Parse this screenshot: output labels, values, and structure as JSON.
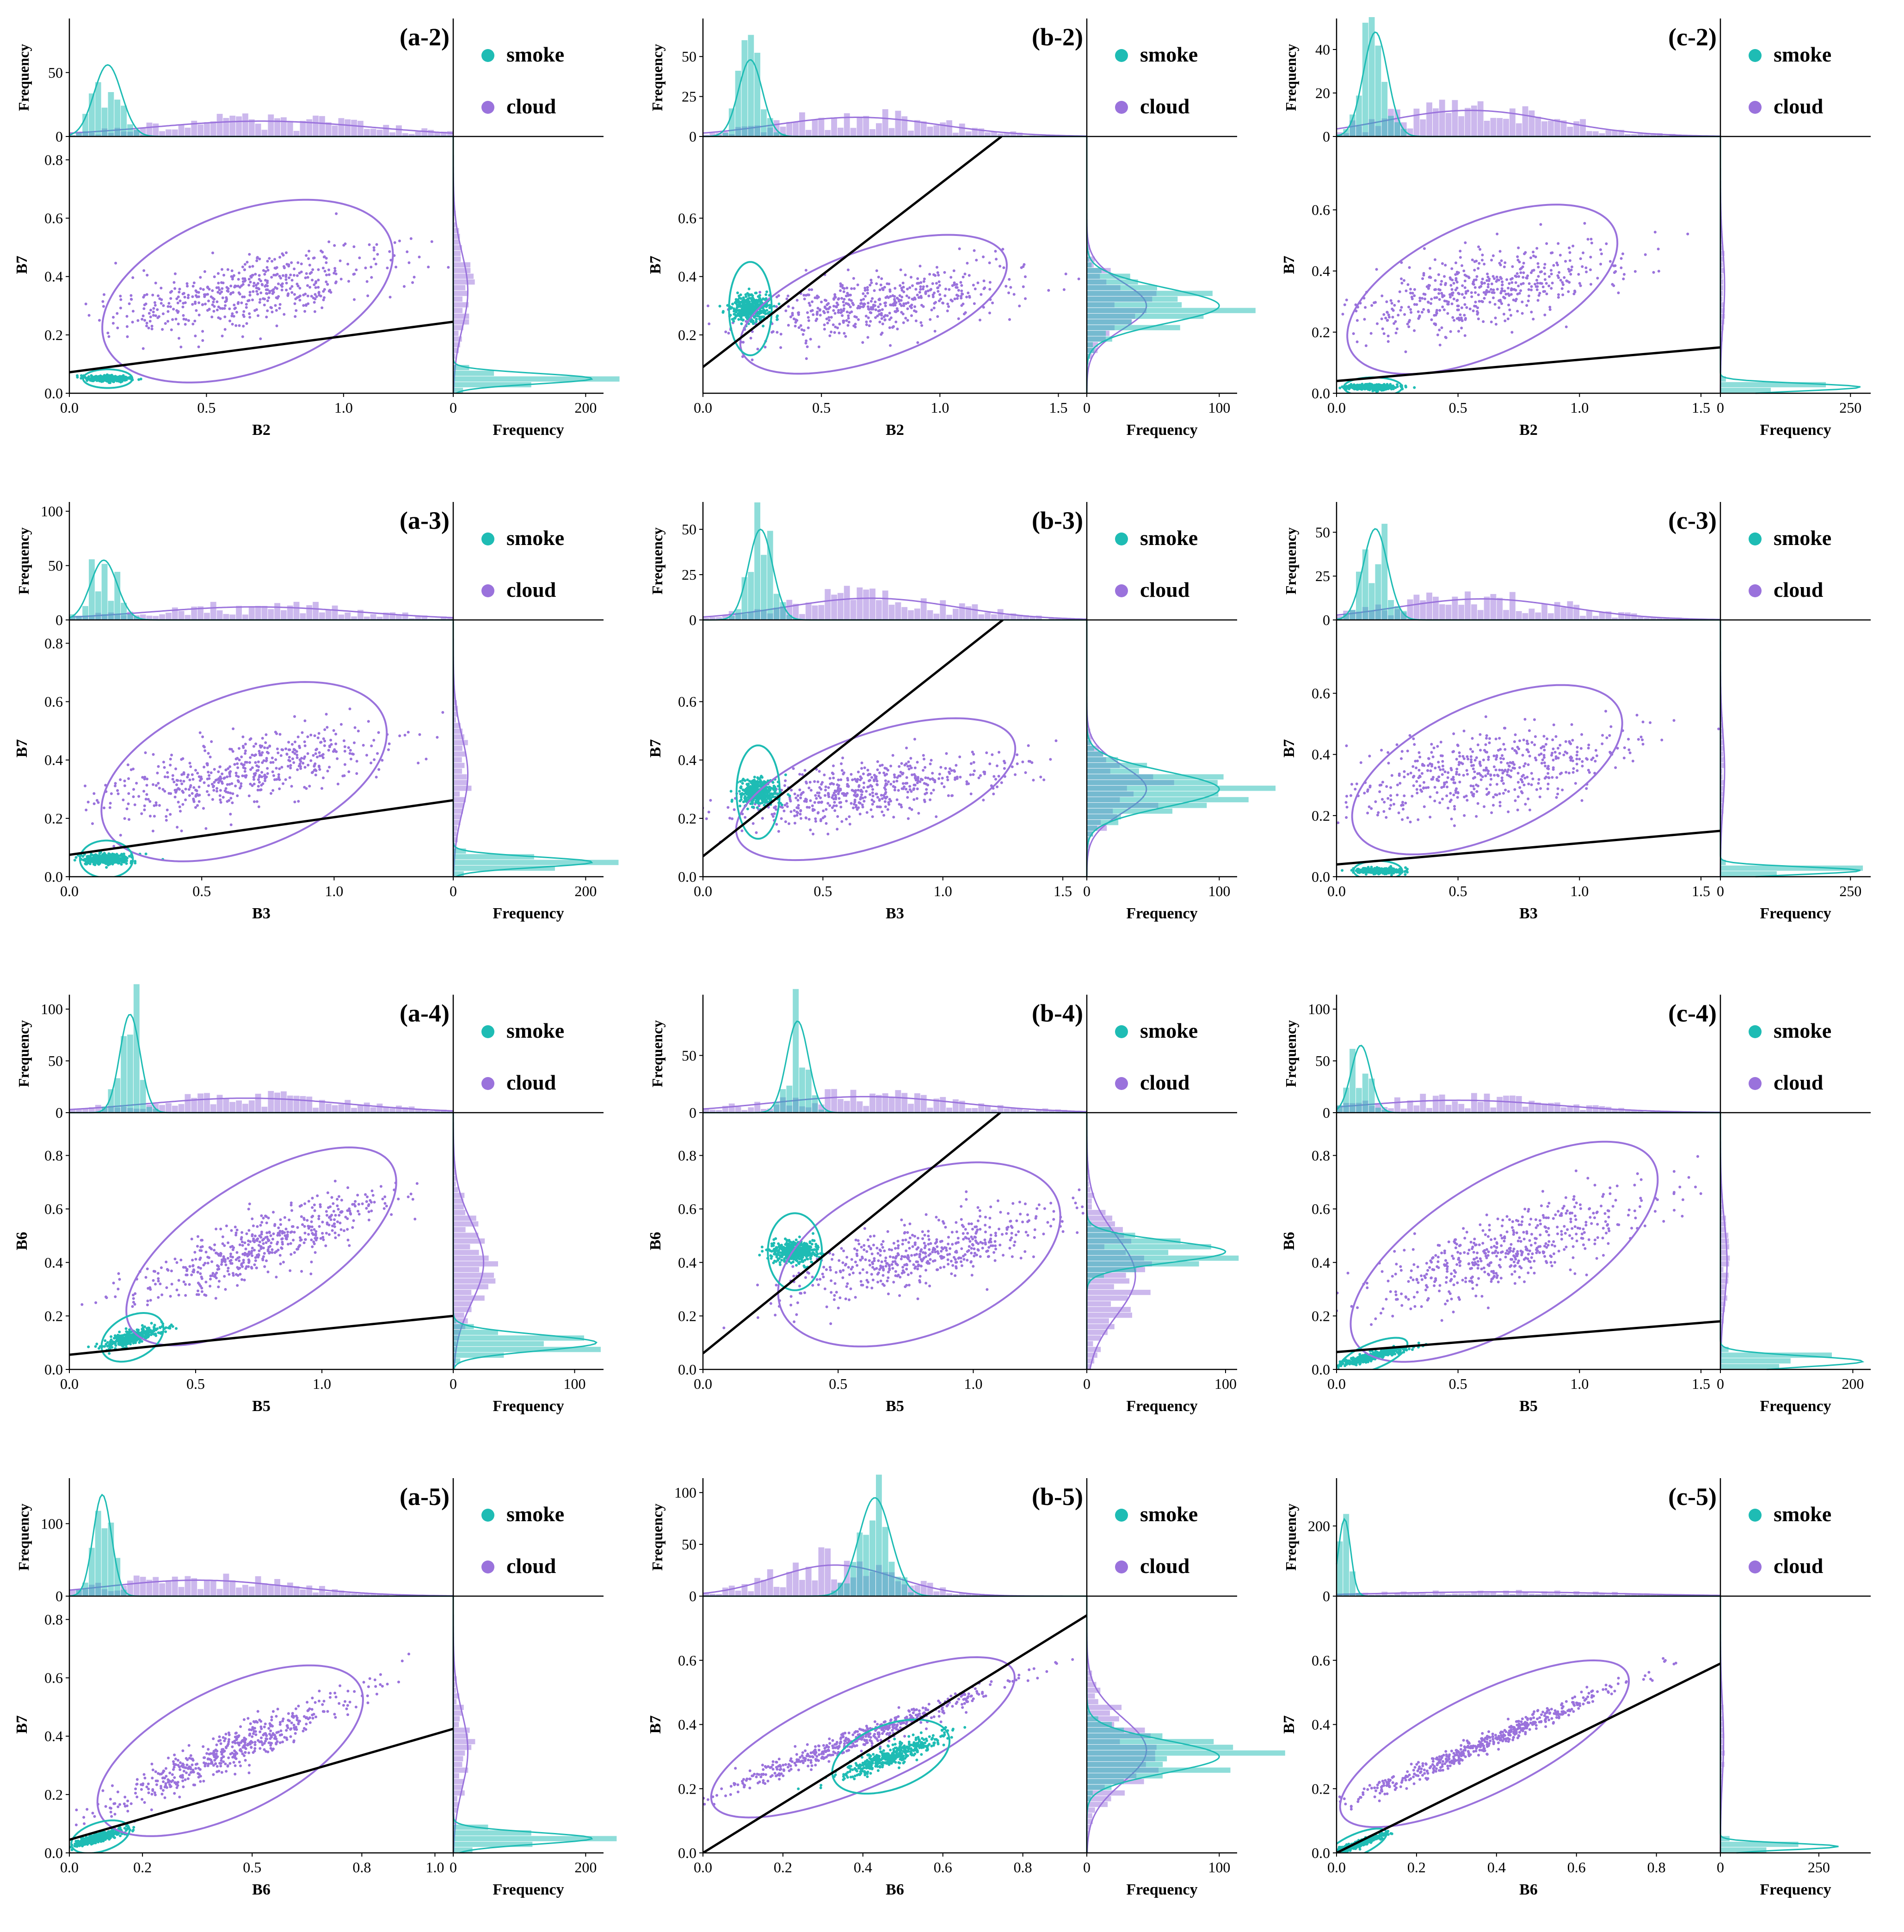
{
  "figure": {
    "legend": {
      "smoke": "smoke",
      "cloud": "cloud"
    },
    "colors": {
      "smoke": "#1ebcb4",
      "cloud": "#9a72dc",
      "line": "#000000",
      "axis": "#000000"
    },
    "hist_label": "Frequency"
  },
  "chart_data": [
    {
      "id": "a-2",
      "panel": "(a-2)",
      "type": "scatter",
      "xlabel": "B2",
      "ylabel": "B7",
      "xlim": [
        0,
        1.4
      ],
      "xticks": [
        0,
        0.5,
        1.0
      ],
      "ylim": [
        0,
        0.88
      ],
      "yticks": [
        0,
        0.2,
        0.4,
        0.6,
        0.8
      ],
      "topmax": 85,
      "topticks": [
        0,
        50
      ],
      "rightmax": 220,
      "rightticks": [
        0,
        200
      ],
      "smoke": {
        "cx": 0.14,
        "cy": 0.05,
        "rx": 0.09,
        "ry": 0.02,
        "rot": 0
      },
      "cloud": {
        "cx": 0.65,
        "cy": 0.35,
        "rx": 0.55,
        "ry": 0.2,
        "rot": 18,
        "yfrac": 0.55
      },
      "line": [
        [
          0,
          0.072
        ],
        [
          1.4,
          0.245
        ]
      ],
      "smoke_hist": {
        "center": 0.14,
        "sd": 0.05,
        "peak": 56
      },
      "cloud_hist": {
        "center": 0.7,
        "sd": 0.4,
        "peak": 12
      },
      "smoke_rhist": {
        "center": 0.05,
        "sd": 0.018,
        "peak": 210
      },
      "cloud_rhist": {
        "center": 0.35,
        "sd": 0.13,
        "peak": 22
      }
    },
    {
      "id": "b-2",
      "panel": "(b-2)",
      "type": "scatter",
      "xlabel": "B2",
      "ylabel": "B7",
      "xlim": [
        0,
        1.62
      ],
      "xticks": [
        0,
        0.5,
        1.0,
        1.5
      ],
      "ylim": [
        0,
        0.88
      ],
      "yticks": [
        0.2,
        0.4,
        0.6
      ],
      "topmax": 68,
      "topticks": [
        0,
        25,
        50
      ],
      "rightmax": 110,
      "rightticks": [
        0,
        100
      ],
      "smoke": {
        "cx": 0.2,
        "cy": 0.29,
        "rx": 0.09,
        "ry": 0.1,
        "rot": 0
      },
      "cloud": {
        "cx": 0.72,
        "cy": 0.305,
        "rx": 0.58,
        "ry": 0.16,
        "rot": 15,
        "yfrac": 0.6
      },
      "line": [
        [
          0,
          0.09
        ],
        [
          1.26,
          0.88
        ]
      ],
      "smoke_hist": {
        "center": 0.2,
        "sd": 0.05,
        "peak": 48
      },
      "cloud_hist": {
        "center": 0.65,
        "sd": 0.35,
        "peak": 12
      },
      "smoke_rhist": {
        "center": 0.3,
        "sd": 0.06,
        "peak": 100
      },
      "cloud_rhist": {
        "center": 0.3,
        "sd": 0.08,
        "peak": 45
      }
    },
    {
      "id": "c-2",
      "panel": "(c-2)",
      "type": "scatter",
      "xlabel": "B2",
      "ylabel": "B7",
      "xlim": [
        0,
        1.58
      ],
      "xticks": [
        0,
        0.5,
        1.0,
        1.5
      ],
      "ylim": [
        0,
        0.84
      ],
      "yticks": [
        0,
        0.2,
        0.4,
        0.6
      ],
      "topmax": 50,
      "topticks": [
        0,
        20,
        40
      ],
      "rightmax": 280,
      "rightticks": [
        0,
        250
      ],
      "smoke": {
        "cx": 0.15,
        "cy": 0.02,
        "rx": 0.12,
        "ry": 0.02,
        "rot": 0
      },
      "cloud": {
        "cx": 0.6,
        "cy": 0.34,
        "rx": 0.58,
        "ry": 0.19,
        "rot": 18,
        "yfrac": 0.6
      },
      "line": [
        [
          0,
          0.04
        ],
        [
          1.58,
          0.15
        ]
      ],
      "smoke_hist": {
        "center": 0.16,
        "sd": 0.05,
        "peak": 48
      },
      "cloud_hist": {
        "center": 0.55,
        "sd": 0.35,
        "peak": 12
      },
      "smoke_rhist": {
        "center": 0.02,
        "sd": 0.012,
        "peak": 270
      },
      "cloud_rhist": {
        "center": 0.35,
        "sd": 0.12,
        "peak": 8
      }
    },
    {
      "id": "a-3",
      "panel": "(a-3)",
      "type": "scatter",
      "xlabel": "B3",
      "ylabel": "B7",
      "xlim": [
        0,
        1.45
      ],
      "xticks": [
        0,
        0.5,
        1.0
      ],
      "ylim": [
        0,
        0.88
      ],
      "yticks": [
        0,
        0.2,
        0.4,
        0.6,
        0.8
      ],
      "topmax": 100,
      "topticks": [
        0,
        50,
        100
      ],
      "rightmax": 220,
      "rightticks": [
        0,
        200
      ],
      "smoke": {
        "cx": 0.14,
        "cy": 0.06,
        "rx": 0.1,
        "ry": 0.04,
        "rot": 0
      },
      "cloud": {
        "cx": 0.66,
        "cy": 0.36,
        "rx": 0.56,
        "ry": 0.2,
        "rot": 18,
        "yfrac": 0.55
      },
      "line": [
        [
          0,
          0.075
        ],
        [
          1.45,
          0.262
        ]
      ],
      "smoke_hist": {
        "center": 0.13,
        "sd": 0.05,
        "peak": 55
      },
      "cloud_hist": {
        "center": 0.7,
        "sd": 0.4,
        "peak": 12
      },
      "smoke_rhist": {
        "center": 0.05,
        "sd": 0.018,
        "peak": 210
      },
      "cloud_rhist": {
        "center": 0.35,
        "sd": 0.13,
        "peak": 22
      }
    },
    {
      "id": "b-3",
      "panel": "(b-3)",
      "type": "scatter",
      "xlabel": "B3",
      "ylabel": "B7",
      "xlim": [
        0,
        1.6
      ],
      "xticks": [
        0,
        0.5,
        1.0,
        1.5
      ],
      "ylim": [
        0,
        0.88
      ],
      "yticks": [
        0,
        0.2,
        0.4,
        0.6
      ],
      "topmax": 60,
      "topticks": [
        0,
        25,
        50
      ],
      "rightmax": 110,
      "rightticks": [
        0,
        100
      ],
      "smoke": {
        "cx": 0.23,
        "cy": 0.29,
        "rx": 0.09,
        "ry": 0.1,
        "rot": 0
      },
      "cloud": {
        "cx": 0.72,
        "cy": 0.3,
        "rx": 0.6,
        "ry": 0.16,
        "rot": 15,
        "yfrac": 0.6
      },
      "line": [
        [
          0,
          0.07
        ],
        [
          1.25,
          0.88
        ]
      ],
      "smoke_hist": {
        "center": 0.24,
        "sd": 0.05,
        "peak": 50
      },
      "cloud_hist": {
        "center": 0.7,
        "sd": 0.35,
        "peak": 12
      },
      "smoke_rhist": {
        "center": 0.3,
        "sd": 0.06,
        "peak": 100
      },
      "cloud_rhist": {
        "center": 0.3,
        "sd": 0.08,
        "peak": 45
      }
    },
    {
      "id": "c-3",
      "panel": "(c-3)",
      "type": "scatter",
      "xlabel": "B3",
      "ylabel": "B7",
      "xlim": [
        0,
        1.58
      ],
      "xticks": [
        0,
        0.5,
        1.0,
        1.5
      ],
      "ylim": [
        0,
        0.84
      ],
      "yticks": [
        0,
        0.2,
        0.4,
        0.6
      ],
      "topmax": 62,
      "topticks": [
        0,
        25,
        50
      ],
      "rightmax": 280,
      "rightticks": [
        0,
        250
      ],
      "smoke": {
        "cx": 0.17,
        "cy": 0.02,
        "rx": 0.1,
        "ry": 0.02,
        "rot": 0
      },
      "cloud": {
        "cx": 0.62,
        "cy": 0.35,
        "rx": 0.58,
        "ry": 0.19,
        "rot": 18,
        "yfrac": 0.6
      },
      "line": [
        [
          0,
          0.04
        ],
        [
          1.58,
          0.15
        ]
      ],
      "smoke_hist": {
        "center": 0.16,
        "sd": 0.05,
        "peak": 52
      },
      "cloud_hist": {
        "center": 0.6,
        "sd": 0.35,
        "peak": 12
      },
      "smoke_rhist": {
        "center": 0.02,
        "sd": 0.012,
        "peak": 270
      },
      "cloud_rhist": {
        "center": 0.35,
        "sd": 0.12,
        "peak": 8
      }
    },
    {
      "id": "a-4",
      "panel": "(a-4)",
      "type": "scatter",
      "xlabel": "B5",
      "ylabel": "B6",
      "xlim": [
        0,
        1.52
      ],
      "xticks": [
        0,
        0.5,
        1.0
      ],
      "ylim": [
        0,
        0.96
      ],
      "yticks": [
        0,
        0.2,
        0.4,
        0.6,
        0.8
      ],
      "topmax": 105,
      "topticks": [
        0,
        50,
        100
      ],
      "rightmax": 120,
      "rightticks": [
        0,
        100
      ],
      "smoke": {
        "cx": 0.25,
        "cy": 0.12,
        "rx": 0.13,
        "ry": 0.05,
        "rot": 25
      },
      "cloud": {
        "cx": 0.76,
        "cy": 0.46,
        "rx": 0.6,
        "ry": 0.18,
        "rot": 30,
        "yfrac": 0.55
      },
      "line": [
        [
          0,
          0.055
        ],
        [
          1.52,
          0.2
        ]
      ],
      "smoke_hist": {
        "center": 0.24,
        "sd": 0.04,
        "peak": 95
      },
      "cloud_hist": {
        "center": 0.7,
        "sd": 0.4,
        "peak": 14
      },
      "smoke_rhist": {
        "center": 0.1,
        "sd": 0.03,
        "peak": 118
      },
      "cloud_rhist": {
        "center": 0.4,
        "sd": 0.15,
        "peak": 25
      }
    },
    {
      "id": "b-4",
      "panel": "(b-4)",
      "type": "scatter",
      "xlabel": "B5",
      "ylabel": "B6",
      "xlim": [
        0,
        1.42
      ],
      "xticks": [
        0,
        0.5,
        1.0
      ],
      "ylim": [
        0,
        0.96
      ],
      "yticks": [
        0,
        0.2,
        0.4,
        0.6,
        0.8
      ],
      "topmax": 95,
      "topticks": [
        0,
        50
      ],
      "rightmax": 105,
      "rightticks": [
        0,
        100
      ],
      "smoke": {
        "cx": 0.34,
        "cy": 0.44,
        "rx": 0.1,
        "ry": 0.09,
        "rot": 0
      },
      "cloud": {
        "cx": 0.8,
        "cy": 0.43,
        "rx": 0.55,
        "ry": 0.2,
        "rot": 22,
        "yfrac": 0.55
      },
      "line": [
        [
          0,
          0.06
        ],
        [
          1.1,
          0.96
        ]
      ],
      "smoke_hist": {
        "center": 0.35,
        "sd": 0.04,
        "peak": 80
      },
      "cloud_hist": {
        "center": 0.6,
        "sd": 0.35,
        "peak": 14
      },
      "smoke_rhist": {
        "center": 0.44,
        "sd": 0.04,
        "peak": 100
      },
      "cloud_rhist": {
        "center": 0.35,
        "sd": 0.15,
        "peak": 35
      }
    },
    {
      "id": "c-4",
      "panel": "(c-4)",
      "type": "scatter",
      "xlabel": "B5",
      "ylabel": "B6",
      "xlim": [
        0,
        1.58
      ],
      "xticks": [
        0,
        0.5,
        1.0,
        1.5
      ],
      "ylim": [
        0,
        0.96
      ],
      "yticks": [
        0,
        0.2,
        0.4,
        0.6,
        0.8
      ],
      "topmax": 105,
      "topticks": [
        0,
        50,
        100
      ],
      "rightmax": 220,
      "rightticks": [
        0,
        200
      ],
      "smoke": {
        "cx": 0.15,
        "cy": 0.05,
        "rx": 0.15,
        "ry": 0.03,
        "rot": 20
      },
      "cloud": {
        "cx": 0.69,
        "cy": 0.44,
        "rx": 0.7,
        "ry": 0.21,
        "rot": 28,
        "yfrac": 0.6
      },
      "line": [
        [
          0,
          0.065
        ],
        [
          1.58,
          0.18
        ]
      ],
      "smoke_hist": {
        "center": 0.1,
        "sd": 0.04,
        "peak": 65
      },
      "cloud_hist": {
        "center": 0.5,
        "sd": 0.4,
        "peak": 12
      },
      "smoke_rhist": {
        "center": 0.03,
        "sd": 0.02,
        "peak": 215
      },
      "cloud_rhist": {
        "center": 0.4,
        "sd": 0.15,
        "peak": 10
      }
    },
    {
      "id": "a-5",
      "panel": "(a-5)",
      "type": "scatter",
      "xlabel": "B6",
      "ylabel": "B7",
      "xlim": [
        0,
        1.05
      ],
      "xticks": [
        0,
        0.2,
        0.5,
        0.8,
        1.0
      ],
      "ylim": [
        0,
        0.88
      ],
      "yticks": [
        0,
        0.2,
        0.4,
        0.6,
        0.8
      ],
      "topmax": 150,
      "topticks": [
        0,
        100
      ],
      "rightmax": 220,
      "rightticks": [
        0,
        200
      ],
      "smoke": {
        "cx": 0.085,
        "cy": 0.055,
        "rx": 0.085,
        "ry": 0.03,
        "rot": 25
      },
      "cloud": {
        "cx": 0.44,
        "cy": 0.35,
        "rx": 0.42,
        "ry": 0.11,
        "rot": 35,
        "yfrac": 0.5
      },
      "line": [
        [
          0,
          0.045
        ],
        [
          1.05,
          0.425
        ]
      ],
      "smoke_hist": {
        "center": 0.09,
        "sd": 0.025,
        "peak": 140
      },
      "cloud_hist": {
        "center": 0.35,
        "sd": 0.25,
        "peak": 22
      },
      "smoke_rhist": {
        "center": 0.05,
        "sd": 0.02,
        "peak": 210
      },
      "cloud_rhist": {
        "center": 0.35,
        "sd": 0.13,
        "peak": 22
      }
    },
    {
      "id": "b-5",
      "panel": "(b-5)",
      "type": "scatter",
      "xlabel": "B6",
      "ylabel": "B7",
      "xlim": [
        0,
        0.96
      ],
      "xticks": [
        0,
        0.2,
        0.4,
        0.6,
        0.8
      ],
      "ylim": [
        0,
        0.8
      ],
      "yticks": [
        0,
        0.2,
        0.4,
        0.6
      ],
      "topmax": 105,
      "topticks": [
        0,
        50,
        100
      ],
      "rightmax": 110,
      "rightticks": [
        0,
        100
      ],
      "smoke": {
        "cx": 0.47,
        "cy": 0.3,
        "rx": 0.16,
        "ry": 0.06,
        "rot": 30
      },
      "cloud": {
        "cx": 0.4,
        "cy": 0.36,
        "rx": 0.43,
        "ry": 0.08,
        "rot": 30,
        "yfrac": 0.35
      },
      "line": [
        [
          0,
          0.0
        ],
        [
          0.96,
          0.74
        ]
      ],
      "smoke_hist": {
        "center": 0.43,
        "sd": 0.04,
        "peak": 95
      },
      "cloud_hist": {
        "center": 0.33,
        "sd": 0.15,
        "peak": 30
      },
      "smoke_rhist": {
        "center": 0.3,
        "sd": 0.05,
        "peak": 100
      },
      "cloud_rhist": {
        "center": 0.32,
        "sd": 0.1,
        "peak": 45
      }
    },
    {
      "id": "c-5",
      "panel": "(c-5)",
      "type": "scatter",
      "xlabel": "B6",
      "ylabel": "B7",
      "xlim": [
        0,
        0.96
      ],
      "xticks": [
        0,
        0.2,
        0.4,
        0.6,
        0.8
      ],
      "ylim": [
        0,
        0.8
      ],
      "yticks": [
        0,
        0.2,
        0.4,
        0.6
      ],
      "topmax": 310,
      "topticks": [
        0,
        200
      ],
      "rightmax": 370,
      "rightticks": [
        0,
        250
      ],
      "smoke": {
        "cx": 0.05,
        "cy": 0.025,
        "rx": 0.085,
        "ry": 0.02,
        "rot": 30
      },
      "cloud": {
        "cx": 0.37,
        "cy": 0.34,
        "rx": 0.42,
        "ry": 0.08,
        "rot": 33,
        "yfrac": 0.3
      },
      "line": [
        [
          0,
          0.0
        ],
        [
          0.96,
          0.59
        ]
      ],
      "smoke_hist": {
        "center": 0.02,
        "sd": 0.015,
        "peak": 220
      },
      "cloud_hist": {
        "center": 0.4,
        "sd": 0.3,
        "peak": 12
      },
      "smoke_rhist": {
        "center": 0.02,
        "sd": 0.01,
        "peak": 300
      },
      "cloud_rhist": {
        "center": 0.35,
        "sd": 0.12,
        "peak": 8
      }
    }
  ]
}
